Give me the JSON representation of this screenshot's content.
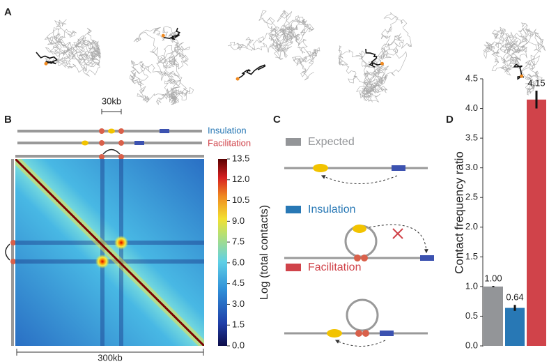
{
  "panel_labels": {
    "a": "A",
    "b": "B",
    "c": "C",
    "d": "D"
  },
  "panel_b": {
    "scale_label": "30kb",
    "track_labels": [
      "Insulation",
      "Facilitation"
    ],
    "axis_label": "300kb",
    "colorbar": {
      "label": "Log (total contacts)",
      "lim": [
        0,
        13.5
      ],
      "ticks": [
        {
          "value": 0,
          "label": "0.0"
        },
        {
          "value": 1.5,
          "label": "1.5"
        },
        {
          "value": 3,
          "label": "3.0"
        },
        {
          "value": 4.5,
          "label": "4.5"
        },
        {
          "value": 6,
          "label": "6.0"
        },
        {
          "value": 7.5,
          "label": "7.5"
        },
        {
          "value": 9,
          "label": "9.0"
        },
        {
          "value": 10.5,
          "label": "10.5"
        },
        {
          "value": 12,
          "label": "12.0"
        },
        {
          "value": 13.5,
          "label": "13.5"
        }
      ]
    }
  },
  "panel_c": {
    "legend": [
      "Expected",
      "Insulation",
      "Facilitation"
    ]
  },
  "chart_data": {
    "type": "bar",
    "y_label": "Contact frequency ratio",
    "categories": [
      null,
      null,
      null
    ],
    "values": [
      1.0,
      0.64,
      4.15
    ],
    "value_labels": [
      "1.00",
      "0.64",
      "4.15"
    ],
    "errors": [
      0.01,
      0.05,
      0.15
    ],
    "colors": [
      "#939598",
      "#2878b5",
      "#d0434a"
    ],
    "ylim": [
      0,
      4.5
    ],
    "yticks": [
      {
        "value": 0,
        "label": "0.0"
      },
      {
        "value": 0.5,
        "label": "0.5"
      },
      {
        "value": 1,
        "label": "1.0"
      },
      {
        "value": 1.5,
        "label": "1.5"
      },
      {
        "value": 2,
        "label": "2.0"
      },
      {
        "value": 2.5,
        "label": "2.5"
      },
      {
        "value": 3,
        "label": "3.0"
      },
      {
        "value": 3.5,
        "label": "3.5"
      },
      {
        "value": 4,
        "label": "4.0"
      },
      {
        "value": 4.5,
        "label": "4.5"
      }
    ]
  }
}
